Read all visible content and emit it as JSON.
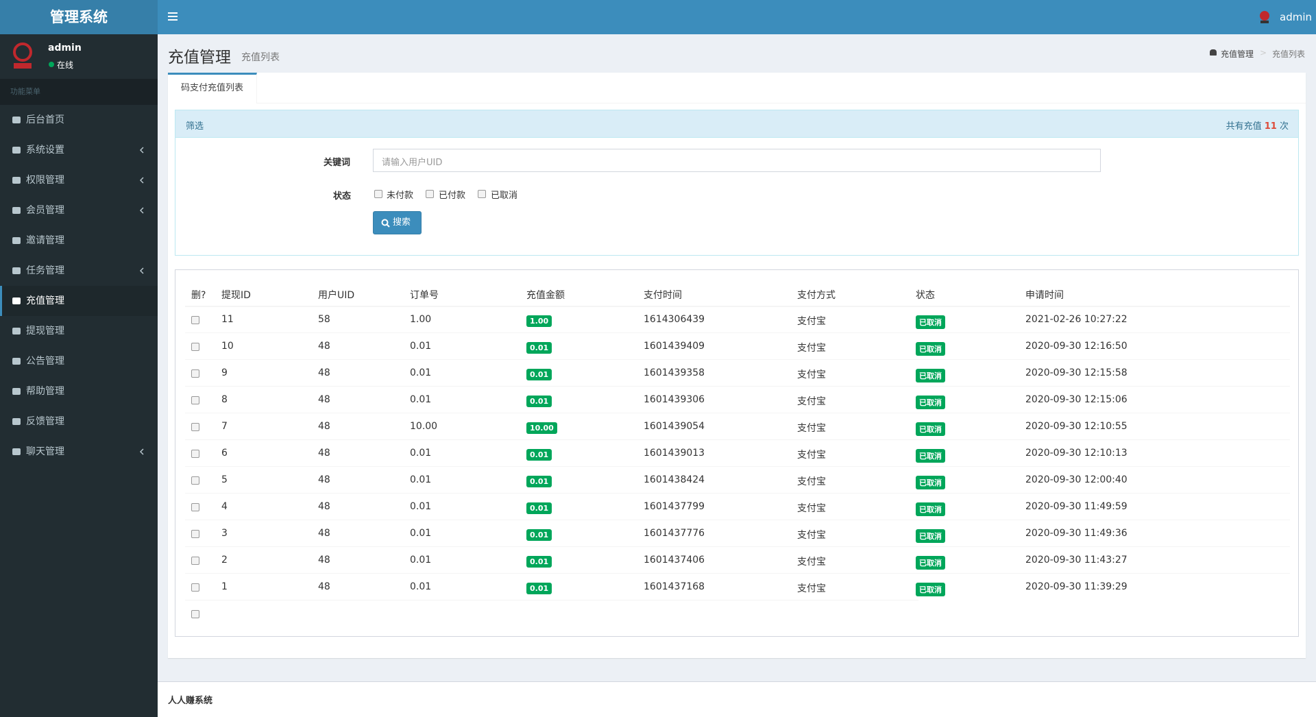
{
  "header": {
    "title": "管理系统",
    "user": "admin"
  },
  "sidebar": {
    "user": "admin",
    "status": "在线",
    "menu_label": "功能菜单",
    "items": [
      "后台首页",
      "系统设置",
      "权限管理",
      "会员管理",
      "邀请管理",
      "任务管理",
      "充值管理",
      "提现管理",
      "公告管理",
      "帮助管理",
      "反馈管理",
      "聊天管理"
    ]
  },
  "page": {
    "title": "充值管理",
    "subtitle": "充值列表",
    "breadcrumb": [
      "充值管理",
      "充值列表"
    ]
  },
  "tab": "码支付充值列表",
  "filter": {
    "title": "筛选",
    "count_prefix": "共有充值",
    "count": 11,
    "count_suffix": "次",
    "keyword_label": "关键词",
    "keyword_placeholder": "请输入用户UID",
    "status_label": "状态",
    "status_options": [
      "未付款",
      "已付款",
      "已取消"
    ],
    "search_button": "搜索"
  },
  "table": {
    "headers": [
      "删?",
      "提现ID",
      "用户UID",
      "订单号",
      "充值金额",
      "支付时间",
      "支付方式",
      "状态",
      "申请时间"
    ],
    "rows": [
      [
        "11",
        "58",
        "1.00",
        "1.00",
        "1614306439",
        "支付宝",
        "已取消",
        "2021-02-26 10:27:22"
      ],
      [
        "10",
        "48",
        "0.01",
        "0.01",
        "1601439409",
        "支付宝",
        "已取消",
        "2020-09-30 12:16:50"
      ],
      [
        "9",
        "48",
        "0.01",
        "0.01",
        "1601439358",
        "支付宝",
        "已取消",
        "2020-09-30 12:15:58"
      ],
      [
        "8",
        "48",
        "0.01",
        "0.01",
        "1601439306",
        "支付宝",
        "已取消",
        "2020-09-30 12:15:06"
      ],
      [
        "7",
        "48",
        "10.00",
        "10.00",
        "1601439054",
        "支付宝",
        "已取消",
        "2020-09-30 12:10:55"
      ],
      [
        "6",
        "48",
        "0.01",
        "0.01",
        "1601439013",
        "支付宝",
        "已取消",
        "2020-09-30 12:10:13"
      ],
      [
        "5",
        "48",
        "0.01",
        "0.01",
        "1601438424",
        "支付宝",
        "已取消",
        "2020-09-30 12:00:40"
      ],
      [
        "4",
        "48",
        "0.01",
        "0.01",
        "1601437799",
        "支付宝",
        "已取消",
        "2020-09-30 11:49:59"
      ],
      [
        "3",
        "48",
        "0.01",
        "0.01",
        "1601437776",
        "支付宝",
        "已取消",
        "2020-09-30 11:49:36"
      ],
      [
        "2",
        "48",
        "0.01",
        "0.01",
        "1601437406",
        "支付宝",
        "已取消",
        "2020-09-30 11:43:27"
      ],
      [
        "1",
        "48",
        "0.01",
        "0.01",
        "1601437168",
        "支付宝",
        "已取消",
        "2020-09-30 11:39:29"
      ]
    ]
  },
  "footer": "人人赚系统"
}
